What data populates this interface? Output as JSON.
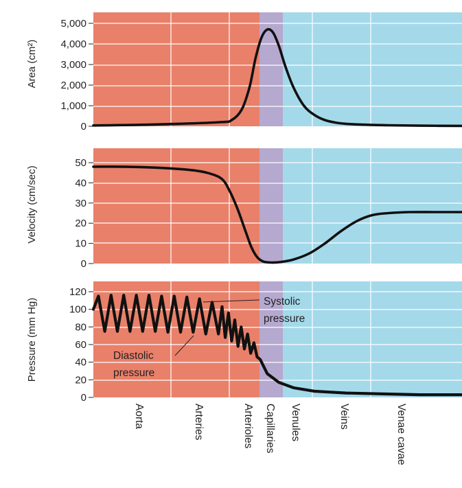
{
  "colors": {
    "arterial_region": "#e9806a",
    "capillary_region": "#b5a9cf",
    "venous_region": "#a4d9ea",
    "grid": "#ffffff",
    "curve": "#111111",
    "text": "#231f20"
  },
  "chart_data": [
    {
      "type": "line",
      "ylabel": "Area (cm²)",
      "ylim": [
        0,
        5000
      ],
      "y_ticks": [
        "5,000",
        "4,000",
        "3,000",
        "2,000",
        "1,000",
        "0"
      ],
      "y_tick_values": [
        5000,
        4000,
        3000,
        2000,
        1000,
        0
      ],
      "grid": true,
      "x_range": [
        0,
        7
      ],
      "series": [
        {
          "x": [
            0,
            1,
            2,
            2.3,
            2.55,
            2.75,
            2.9,
            3.05,
            3.2,
            3.35,
            3.5,
            3.65,
            3.8,
            4.0,
            4.2,
            4.4,
            4.6,
            4.8,
            5.1,
            5.6,
            6.2,
            7
          ],
          "values": [
            40,
            90,
            200,
            300,
            800,
            1900,
            3300,
            4300,
            4700,
            4550,
            3900,
            2900,
            1900,
            1000,
            550,
            300,
            180,
            120,
            80,
            50,
            30,
            20
          ]
        }
      ]
    },
    {
      "type": "line",
      "ylabel": "Velocity (cm/sec)",
      "ylim": [
        0,
        55
      ],
      "y_ticks": [
        "50",
        "40",
        "30",
        "20",
        "10",
        "0"
      ],
      "y_tick_values": [
        50,
        40,
        30,
        20,
        10,
        0
      ],
      "grid": true,
      "x_range": [
        0,
        7
      ],
      "series": [
        {
          "x": [
            0,
            0.5,
            1,
            1.5,
            1.8,
            2.05,
            2.25,
            2.45,
            2.65,
            2.8,
            2.95,
            3.1,
            3.3,
            3.55,
            3.8,
            4.1,
            4.4,
            4.7,
            5.0,
            5.3,
            5.6,
            6.0,
            6.5,
            7
          ],
          "values": [
            48,
            48,
            47.5,
            46.5,
            45,
            42,
            36,
            27,
            16,
            8,
            3,
            1,
            0.5,
            0.8,
            2,
            5,
            10,
            16,
            21,
            24,
            25,
            25.5,
            25.5,
            25.5
          ]
        }
      ]
    },
    {
      "type": "line",
      "ylabel": "Pressure (mm Hg)",
      "ylim": [
        0,
        130
      ],
      "y_ticks": [
        "120",
        "100",
        "80",
        "60",
        "40",
        "20",
        "0"
      ],
      "y_tick_values": [
        120,
        100,
        80,
        60,
        40,
        20,
        0
      ],
      "grid": true,
      "x_range": [
        0,
        7
      ],
      "series": [
        {
          "x": [
            0.0,
            0.08,
            0.18,
            0.28,
            0.38,
            0.48,
            0.58,
            0.68,
            0.78,
            0.88,
            0.98,
            1.08,
            1.18,
            1.28,
            1.38,
            1.48,
            1.58,
            1.68,
            1.78,
            1.88,
            1.98,
            2.06,
            2.14,
            2.22,
            2.3,
            2.38,
            2.46,
            2.54,
            2.62,
            2.7,
            2.78,
            2.86,
            2.94,
            3.02,
            3.2,
            3.5,
            3.8,
            4.2,
            4.8,
            5.5,
            6.2,
            7.0
          ],
          "values": [
            100,
            115,
            75,
            116,
            75,
            116,
            75,
            116,
            75,
            116,
            75,
            115,
            74,
            115,
            74,
            114,
            74,
            112,
            72,
            108,
            72,
            103,
            68,
            96,
            64,
            88,
            58,
            80,
            55,
            72,
            50,
            62,
            46,
            43,
            27,
            17,
            11,
            7,
            5,
            4,
            3,
            3
          ]
        }
      ]
    }
  ],
  "vessel_labels": [
    "Aorta",
    "Arteries",
    "Arterioles",
    "Capillaries",
    "Venules",
    "Veins",
    "Venae cavae"
  ],
  "annotations": {
    "systolic": [
      "Systolic",
      "pressure"
    ],
    "diastolic": [
      "Diastolic",
      "pressure"
    ]
  }
}
